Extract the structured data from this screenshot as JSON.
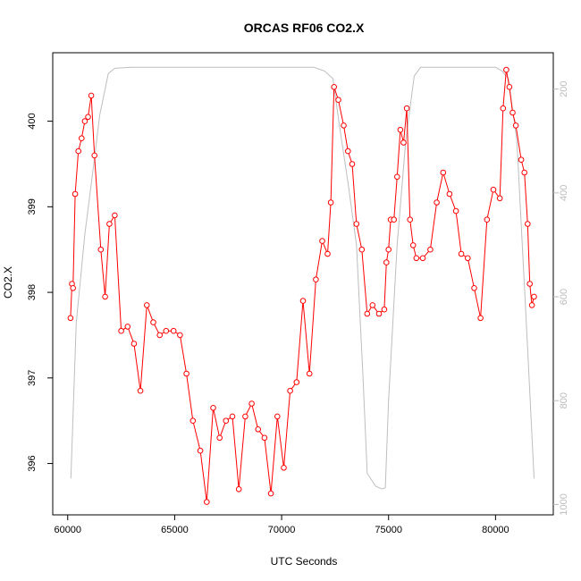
{
  "chart_data": {
    "type": "line",
    "title": "ORCAS RF06 CO2.X",
    "xlabel": "UTC Seconds",
    "ylabel": "CO2.X",
    "xlim": [
      59300,
      82700
    ],
    "ylim": [
      395.4,
      400.8
    ],
    "y2lim": [
      1020,
      130
    ],
    "x_ticks": [
      60000,
      65000,
      70000,
      75000,
      80000
    ],
    "y_ticks": [
      396,
      397,
      398,
      399,
      400
    ],
    "y2_ticks": [
      200,
      400,
      600,
      800,
      1000
    ],
    "colors": {
      "co2": "#ff0000",
      "pressure": "#bebebe",
      "axis": "#000000",
      "axis_right": "#bbbbbb"
    },
    "series": [
      {
        "name": "",
        "axis": "left",
        "style": "line-points",
        "color": "#ff0000",
        "x": [
          60130,
          60200,
          60250,
          60350,
          60500,
          60650,
          60800,
          60950,
          61100,
          61250,
          61550,
          61750,
          61950,
          62200,
          62500,
          62800,
          63100,
          63400,
          63700,
          64000,
          64300,
          64600,
          64950,
          65250,
          65550,
          65850,
          66200,
          66500,
          66800,
          67100,
          67400,
          67700,
          68000,
          68300,
          68600,
          68900,
          69200,
          69500,
          69800,
          70100,
          70400,
          70700,
          71000,
          71300,
          71600,
          71900,
          72150,
          72300,
          72450,
          72650,
          72900,
          73100,
          73300,
          73500,
          73750,
          74000,
          74250,
          74550,
          74800,
          74900,
          75000,
          75100,
          75250,
          75400,
          75550,
          75700,
          75850,
          76000,
          76150,
          76300,
          76600,
          76950,
          77250,
          77550,
          77850,
          78150,
          78400,
          78700,
          79000,
          79300,
          79600,
          79900,
          80200,
          80350,
          80500,
          80650,
          80800,
          80950,
          81200,
          81350,
          81500,
          81600,
          81700,
          81800
        ],
        "y": [
          397.7,
          398.1,
          398.05,
          399.15,
          399.65,
          399.8,
          400.0,
          400.05,
          400.3,
          399.6,
          398.5,
          397.95,
          398.8,
          398.9,
          397.55,
          397.6,
          397.4,
          396.85,
          397.85,
          397.65,
          397.5,
          397.55,
          397.55,
          397.5,
          397.05,
          396.5,
          396.15,
          395.55,
          396.65,
          396.3,
          396.5,
          396.55,
          395.7,
          396.55,
          396.7,
          396.4,
          396.3,
          395.65,
          396.55,
          395.95,
          396.85,
          396.95,
          397.9,
          397.05,
          398.15,
          398.6,
          398.45,
          399.05,
          400.4,
          400.25,
          399.95,
          399.65,
          399.5,
          398.8,
          398.5,
          397.75,
          397.85,
          397.75,
          397.8,
          398.35,
          398.5,
          398.85,
          398.85,
          399.35,
          399.9,
          399.75,
          400.15,
          398.85,
          398.55,
          398.4,
          398.4,
          398.5,
          399.05,
          399.4,
          399.15,
          398.95,
          398.45,
          398.4,
          398.05,
          397.7,
          398.85,
          399.2,
          399.1,
          400.15,
          400.6,
          400.4,
          400.1,
          399.95,
          399.55,
          399.4,
          398.8,
          398.1,
          397.85,
          397.95
        ]
      },
      {
        "name": "",
        "axis": "right",
        "style": "line",
        "color": "#bebebe",
        "x": [
          60150,
          60400,
          60800,
          61200,
          61500,
          61900,
          62200,
          63000,
          66000,
          69000,
          71500,
          72000,
          72400,
          72700,
          73100,
          73500,
          73800,
          74000,
          74400,
          74700,
          74850,
          75000,
          75400,
          75800,
          76200,
          76500,
          77000,
          79000,
          80000,
          80300,
          80600,
          81000,
          81500,
          81800
        ],
        "y": [
          950,
          650,
          480,
          350,
          250,
          170,
          160,
          158,
          158,
          158,
          158,
          165,
          180,
          270,
          380,
          500,
          750,
          940,
          965,
          970,
          968,
          800,
          500,
          300,
          175,
          158,
          158,
          158,
          158,
          165,
          180,
          300,
          700,
          950
        ]
      }
    ]
  }
}
